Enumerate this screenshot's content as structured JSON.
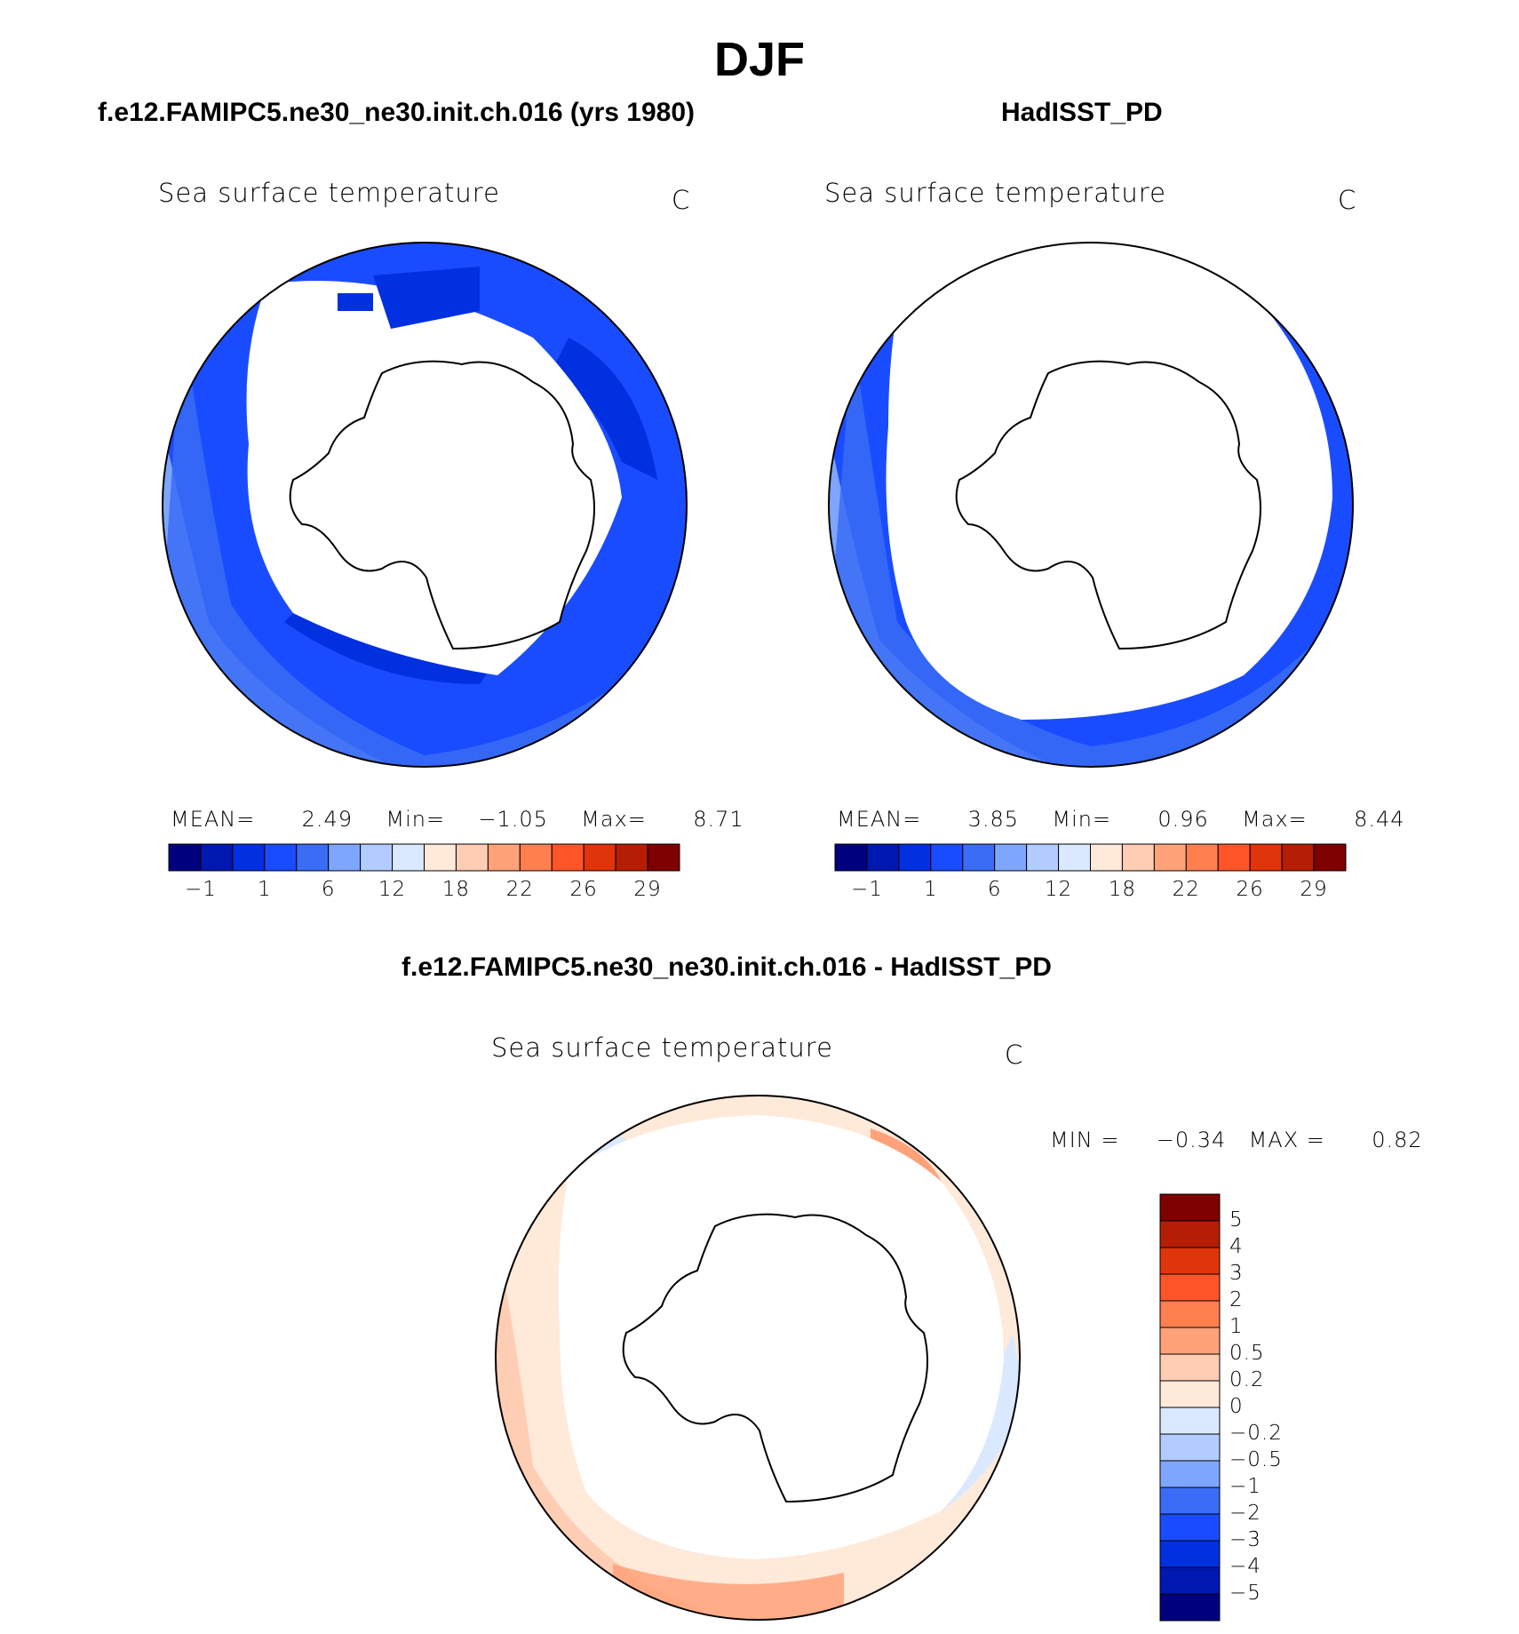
{
  "season": "DJF",
  "colors": {
    "sst_palette": [
      "#00007f",
      "#0018b0",
      "#0030e0",
      "#1a4cff",
      "#3a6cf5",
      "#7fa6ff",
      "#b3ccff",
      "#dae9ff",
      "#ffe9d9",
      "#ffcdb3",
      "#ffa27a",
      "#ff7f4f",
      "#ff5528",
      "#e0340a",
      "#b51e05",
      "#7f0000"
    ],
    "diff_palette": [
      "#00007f",
      "#0018b0",
      "#0030e0",
      "#1a4cff",
      "#3a6cf5",
      "#7fa6ff",
      "#b3ccff",
      "#dae9ff",
      "#ffe9d9",
      "#ffcdb3",
      "#ffa27a",
      "#ff7f4f",
      "#ff5528",
      "#e0340a",
      "#b51e05",
      "#7f0000"
    ]
  },
  "panels": [
    {
      "title": "f.e12.FAMIPC5.ne30_ne30.init.ch.016 (yrs 1980)",
      "variable": "Sea surface temperature",
      "units": "C",
      "stats": {
        "mean_label": "MEAN=",
        "mean": "2.49",
        "min_label": "Min=",
        "min": "−1.05",
        "max_label": "Max=",
        "max": "8.71"
      },
      "colorbar_ticks": [
        "−1",
        "1",
        "6",
        "12",
        "18",
        "22",
        "26",
        "29"
      ]
    },
    {
      "title": "HadISST_PD",
      "variable": "Sea surface temperature",
      "units": "C",
      "stats": {
        "mean_label": "MEAN=",
        "mean": "3.85",
        "min_label": "Min=",
        "min": "0.96",
        "max_label": "Max=",
        "max": "8.44"
      },
      "colorbar_ticks": [
        "−1",
        "1",
        "6",
        "12",
        "18",
        "22",
        "26",
        "29"
      ]
    }
  ],
  "diff_panel": {
    "title": "f.e12.FAMIPC5.ne30_ne30.init.ch.016 - HadISST_PD",
    "variable": "Sea surface temperature",
    "units": "C",
    "stats": {
      "min_label": "MIN =",
      "min": "−0.34",
      "max_label": "MAX =",
      "max": "0.82"
    },
    "colorbar_ticks": [
      "5",
      "4",
      "3",
      "2",
      "1",
      "0.5",
      "0.2",
      "0",
      "−0.2",
      "−0.5",
      "−1",
      "−2",
      "−3",
      "−4",
      "−5"
    ]
  }
}
